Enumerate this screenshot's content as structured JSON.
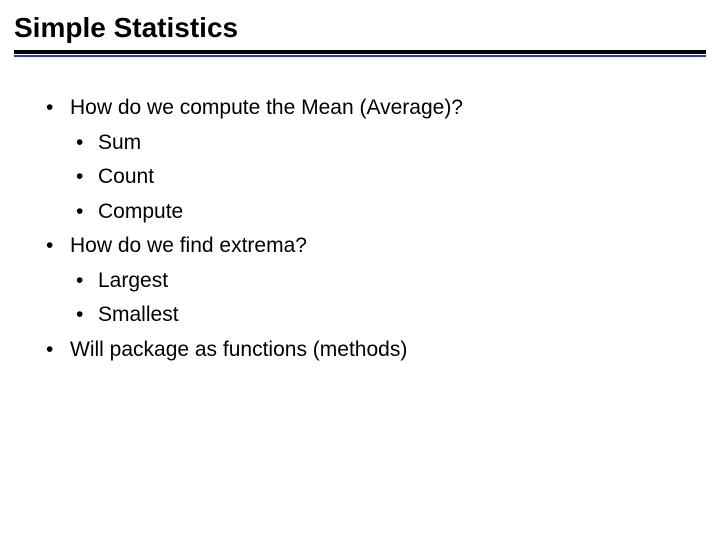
{
  "title": "Simple Statistics",
  "title_fontsize": 28,
  "body_fontsize": 21,
  "rule_color_top": "#000000",
  "rule_color_bottom": "#2b3db0",
  "background_color": "#ffffff",
  "text_color": "#000000",
  "bullets": {
    "b0": "How do we compute the Mean (Average)?",
    "b0_0": "Sum",
    "b0_1": "Count",
    "b0_2": "Compute",
    "b1": "How do we find extrema?",
    "b1_0": "Largest",
    "b1_1": "Smallest",
    "b2": "Will package as functions (methods)"
  }
}
